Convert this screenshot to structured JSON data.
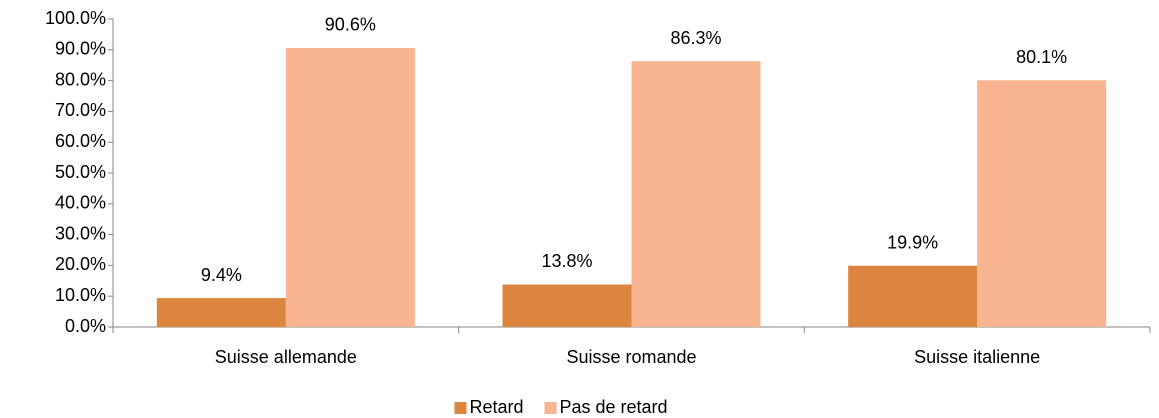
{
  "chart_data": {
    "type": "bar",
    "categories": [
      "Suisse allemande",
      "Suisse romande",
      "Suisse italienne"
    ],
    "series": [
      {
        "name": "Retard",
        "color": "#dc853f",
        "values": [
          9.4,
          13.8,
          19.9
        ],
        "value_labels": [
          "9.4%",
          "13.8%",
          "19.9%"
        ]
      },
      {
        "name": "Pas de retard",
        "color": "#f9b592",
        "values": [
          90.6,
          86.3,
          80.1
        ],
        "value_labels": [
          "90.6%",
          "86.3%",
          "80.1%"
        ]
      }
    ],
    "ylim": [
      0,
      100
    ],
    "yticks": [
      {
        "value": 0,
        "label": "0.0%"
      },
      {
        "value": 10,
        "label": "10.0%"
      },
      {
        "value": 20,
        "label": "20.0%"
      },
      {
        "value": 30,
        "label": "30.0%"
      },
      {
        "value": 40,
        "label": "40.0%"
      },
      {
        "value": 50,
        "label": "50.0%"
      },
      {
        "value": 60,
        "label": "60.0%"
      },
      {
        "value": 70,
        "label": "70.0%"
      },
      {
        "value": 80,
        "label": "80.0%"
      },
      {
        "value": 90,
        "label": "90.0%"
      },
      {
        "value": 100,
        "label": "100.0%"
      }
    ],
    "grid": false,
    "legend": "bottom"
  }
}
